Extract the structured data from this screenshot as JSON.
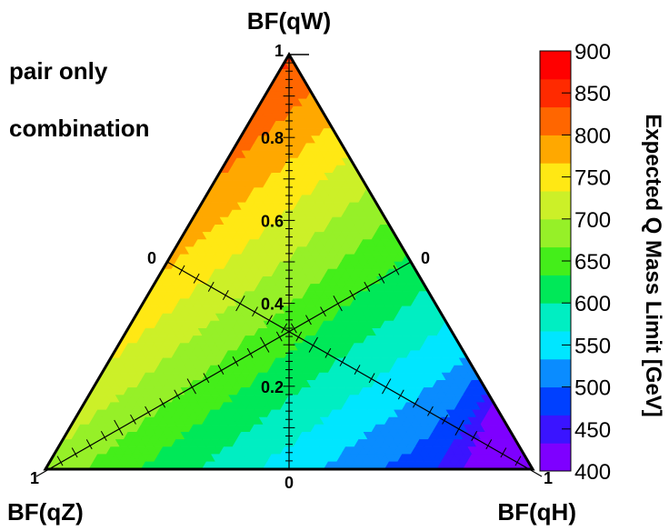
{
  "chart_data": {
    "type": "heatmap",
    "subtype": "ternary",
    "axes": {
      "top": "BF(qW)",
      "left": "BF(qZ)",
      "right": "BF(qH)"
    },
    "annotations": [
      "pair only",
      "combination"
    ],
    "vertex_tick_labels": {
      "top": "1",
      "left": "1",
      "right": "1",
      "bottom_center": "0",
      "left_side": "0",
      "right_side": "0"
    },
    "center_axis_ticks": [
      "0.2",
      "0.4",
      "0.6",
      "0.8"
    ],
    "colorbar": {
      "label": "Expected Q Mass Limit [GeV]",
      "range": [
        400,
        900
      ],
      "tick_labels": [
        "400",
        "450",
        "500",
        "550",
        "600",
        "650",
        "700",
        "750",
        "800",
        "850",
        "900"
      ],
      "colors": [
        "#7e00ff",
        "#3a14ff",
        "#0040ff",
        "#0a8cff",
        "#00e6ff",
        "#00eec2",
        "#00e858",
        "#44ee1a",
        "#96f028",
        "#ccf028",
        "#ffe814",
        "#ffa800",
        "#ff6600",
        "#ff2a00",
        "#ff0000"
      ]
    },
    "vertex_limits_gev": {
      "qW": 840,
      "qZ": 690,
      "qH": 430
    }
  }
}
